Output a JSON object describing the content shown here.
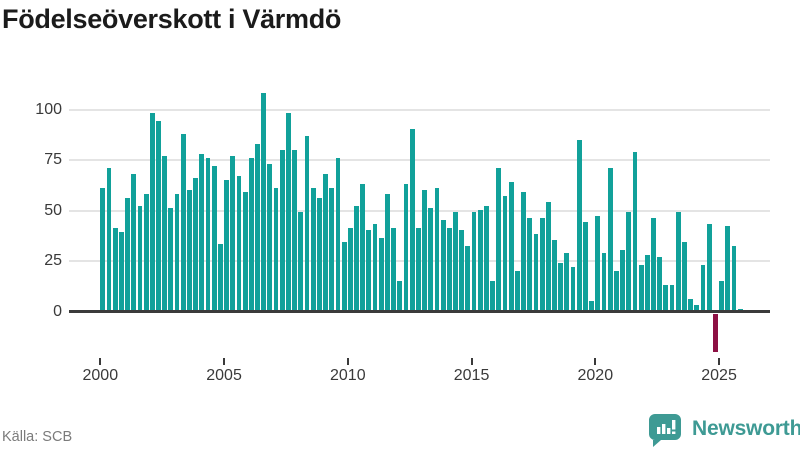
{
  "title": "Födelseöverskott i Värmdö",
  "source": {
    "label": "Källa: SCB"
  },
  "brand": {
    "name": "Newsworthy",
    "icon": "newsworthy-speech-bubble-bar-chart-icon"
  },
  "colors": {
    "bar": "#11a19a",
    "bar_negative": "#8d1044",
    "grid": "#e4e4e4",
    "axis_line": "#3b3b3b",
    "axis_text": "#3a3a3a",
    "title_text": "#1b1b1b",
    "source_text": "#7b7b7b",
    "brand_teal": "#3e9a94"
  },
  "chart_data": {
    "type": "bar",
    "title": "Födelseöverskott i Värmdö",
    "xlabel": "",
    "ylabel": "",
    "frequency": "quarterly",
    "x_start": "2000-Q1",
    "x_end": "2025-Q4",
    "values": [
      61,
      71,
      41,
      39,
      56,
      68,
      52,
      58,
      98,
      94,
      77,
      51,
      58,
      88,
      60,
      66,
      78,
      76,
      72,
      33,
      65,
      77,
      67,
      59,
      76,
      83,
      108,
      73,
      61,
      80,
      98,
      80,
      49,
      87,
      61,
      56,
      68,
      61,
      76,
      34,
      41,
      52,
      63,
      40,
      43,
      36,
      58,
      41,
      15,
      63,
      90,
      41,
      60,
      51,
      61,
      45,
      41,
      49,
      40,
      32,
      49,
      50,
      52,
      15,
      71,
      57,
      64,
      20,
      59,
      46,
      38,
      46,
      54,
      35,
      24,
      29,
      22,
      85,
      44,
      5,
      47,
      29,
      71,
      20,
      30,
      49,
      79,
      23,
      28,
      46,
      27,
      13,
      13,
      49,
      34,
      6,
      3,
      23,
      43,
      -20,
      15,
      42,
      32,
      1
    ],
    "x_tick_years": [
      "2000",
      "2005",
      "2010",
      "2015",
      "2020",
      "2025"
    ],
    "y_ticks": [
      "0",
      "25",
      "50",
      "75",
      "100"
    ],
    "ylim": [
      -25,
      110
    ],
    "grid": true,
    "legend": "none",
    "note": "negative values drawn in dark red"
  }
}
